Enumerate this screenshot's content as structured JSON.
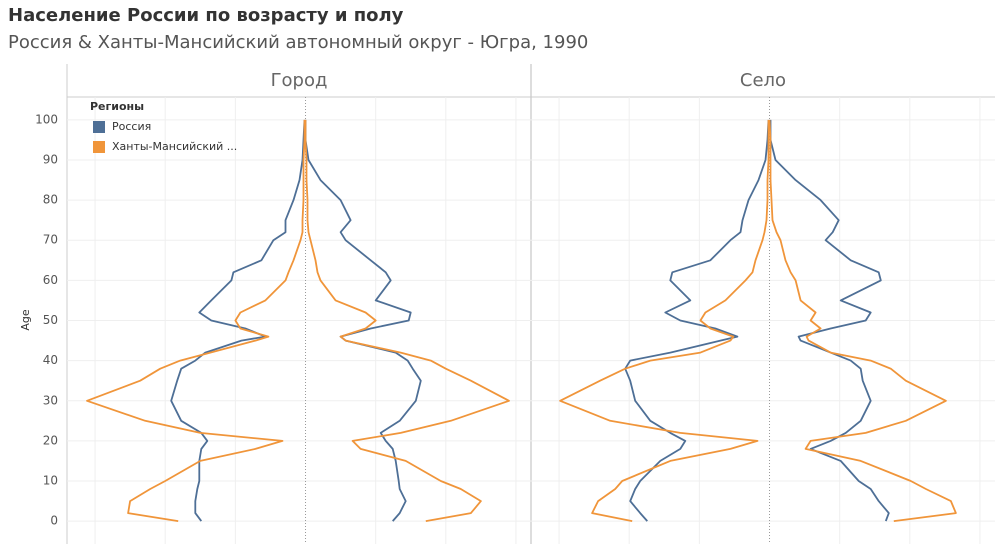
{
  "chart_data": {
    "type": "line",
    "title": "Население России по возрасту и полу",
    "subtitle": "Россия & Ханты-Мансийский автономный округ - Югра, 1990",
    "y_label": "Age",
    "legend_title": "Регионы",
    "legend": "top-left",
    "ylim": [
      -5.7,
      105.7
    ],
    "yticks": [
      0,
      10,
      20,
      30,
      40,
      50,
      60,
      70,
      80,
      90,
      100
    ],
    "xlim": [
      -1.19,
      1.125
    ],
    "xgrid": [
      -1.05,
      -0.7,
      -0.35,
      0,
      0.35,
      0.7,
      1.05
    ],
    "grid": true,
    "ages": [
      0,
      2,
      5,
      8,
      10,
      15,
      18,
      20,
      22,
      25,
      30,
      35,
      38,
      40,
      42,
      45,
      46,
      48,
      50,
      52,
      55,
      60,
      62,
      65,
      70,
      72,
      75,
      80,
      85,
      90,
      95,
      100
    ],
    "facets": [
      {
        "title": "Город",
        "series": [
          {
            "name": "Россия",
            "color": "#4e6f96",
            "left": [
              -0.52,
              -0.55,
              -0.55,
              -0.54,
              -0.53,
              -0.53,
              -0.52,
              -0.49,
              -0.52,
              -0.62,
              -0.67,
              -0.64,
              -0.62,
              -0.55,
              -0.5,
              -0.32,
              -0.2,
              -0.3,
              -0.47,
              -0.53,
              -0.47,
              -0.37,
              -0.36,
              -0.22,
              -0.16,
              -0.1,
              -0.1,
              -0.06,
              -0.03,
              -0.015,
              -0.01,
              -0.005
            ],
            "right": [
              0.435,
              0.47,
              0.5,
              0.47,
              0.465,
              0.45,
              0.435,
              0.4,
              0.375,
              0.47,
              0.55,
              0.575,
              0.535,
              0.51,
              0.45,
              0.2,
              0.175,
              0.325,
              0.515,
              0.525,
              0.35,
              0.425,
              0.4,
              0.325,
              0.2,
              0.175,
              0.225,
              0.175,
              0.075,
              0.015,
              0,
              0
            ]
          },
          {
            "name": "Ханты-Мансийский ...",
            "color": "#f0953a",
            "left": [
              -0.635,
              -0.885,
              -0.875,
              -0.775,
              -0.7,
              -0.525,
              -0.25,
              -0.115,
              -0.525,
              -0.8,
              -1.09,
              -0.825,
              -0.725,
              -0.625,
              -0.475,
              -0.25,
              -0.185,
              -0.325,
              -0.35,
              -0.325,
              -0.2,
              -0.1,
              -0.085,
              -0.06,
              -0.025,
              -0.015,
              -0.015,
              -0.01,
              -0.01,
              -0.01,
              -0.005,
              -0.005
            ],
            "right": [
              0.6,
              0.825,
              0.875,
              0.775,
              0.675,
              0.5,
              0.275,
              0.235,
              0.475,
              0.725,
              1.015,
              0.825,
              0.7,
              0.625,
              0.475,
              0.2,
              0.175,
              0.3,
              0.35,
              0.3,
              0.15,
              0.075,
              0.06,
              0.05,
              0.025,
              0.015,
              0.01,
              0.01,
              0.005,
              0.005,
              0,
              0
            ]
          }
        ]
      },
      {
        "title": "Село",
        "series": [
          {
            "name": "Россия",
            "color": "#4e6f96",
            "left": [
              -0.61,
              -0.645,
              -0.695,
              -0.67,
              -0.645,
              -0.545,
              -0.445,
              -0.42,
              -0.495,
              -0.595,
              -0.67,
              -0.695,
              -0.72,
              -0.695,
              -0.495,
              -0.245,
              -0.16,
              -0.27,
              -0.445,
              -0.52,
              -0.395,
              -0.495,
              -0.485,
              -0.295,
              -0.195,
              -0.145,
              -0.135,
              -0.105,
              -0.055,
              -0.02,
              -0.01,
              -0.005
            ],
            "right": [
              0.58,
              0.595,
              0.545,
              0.505,
              0.445,
              0.355,
              0.205,
              0.305,
              0.38,
              0.455,
              0.505,
              0.465,
              0.455,
              0.405,
              0.305,
              0.155,
              0.145,
              0.305,
              0.48,
              0.505,
              0.355,
              0.555,
              0.545,
              0.405,
              0.28,
              0.315,
              0.345,
              0.255,
              0.13,
              0.03,
              0.005,
              0.005
            ]
          },
          {
            "name": "Ханты-Мансийский ...",
            "color": "#f0953a",
            "left": [
              -0.685,
              -0.885,
              -0.855,
              -0.77,
              -0.735,
              -0.495,
              -0.195,
              -0.06,
              -0.445,
              -0.795,
              -1.045,
              -0.845,
              -0.72,
              -0.595,
              -0.345,
              -0.195,
              -0.18,
              -0.295,
              -0.345,
              -0.32,
              -0.22,
              -0.12,
              -0.085,
              -0.07,
              -0.035,
              -0.025,
              -0.015,
              -0.01,
              -0.01,
              -0.005,
              -0.005,
              -0.005
            ],
            "right": [
              0.62,
              0.93,
              0.905,
              0.78,
              0.705,
              0.455,
              0.18,
              0.205,
              0.48,
              0.68,
              0.88,
              0.68,
              0.605,
              0.505,
              0.305,
              0.195,
              0.185,
              0.255,
              0.205,
              0.23,
              0.155,
              0.13,
              0.105,
              0.08,
              0.055,
              0.035,
              0.015,
              0.01,
              0.005,
              0.005,
              0.005,
              0
            ]
          }
        ]
      }
    ]
  }
}
